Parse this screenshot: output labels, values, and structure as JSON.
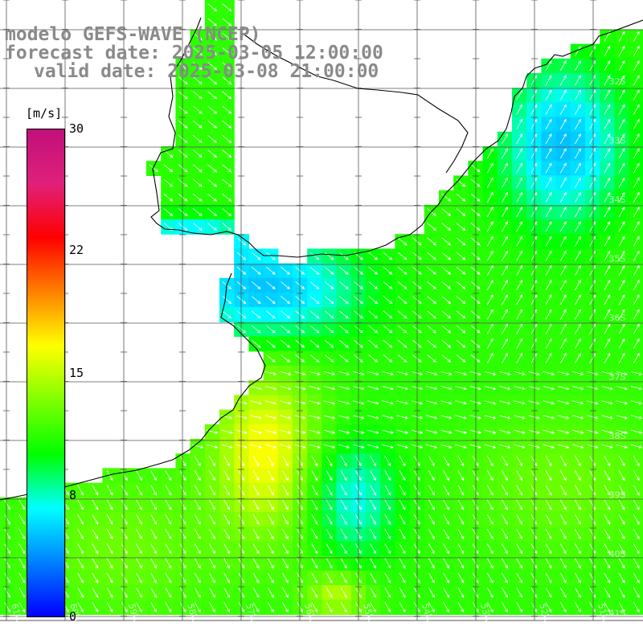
{
  "title": {
    "line1": "modelo GEFS-WAVE (NCEP)",
    "line2": "forecast date: 2025-03-05 12:00:00",
    "line3": "valid date: 2025-03-08 21:00:00"
  },
  "colorbar": {
    "unit": "[m/s]",
    "ticks": [
      "30",
      "22",
      "15",
      "8",
      "0"
    ],
    "colors": [
      "#c0107a",
      "#e0207a",
      "#ff0000",
      "#ff8000",
      "#ffff00",
      "#80ff00",
      "#00ff00",
      "#00ffff",
      "#0080ff",
      "#0000ff"
    ]
  },
  "axes": {
    "lat_labels": [
      "32S",
      "33S",
      "34S",
      "35S",
      "36S",
      "37S",
      "38S",
      "39S",
      "40S",
      "41S"
    ],
    "lon_labels": [
      "61W",
      "60W",
      "59W",
      "58W",
      "57W",
      "56W",
      "55W",
      "54W",
      "53W",
      "52W",
      "51W"
    ]
  },
  "legend_colors": {
    "land": "#ffffff",
    "grid": "#555555",
    "coast": "#000000",
    "vectors": "#ffffff"
  }
}
